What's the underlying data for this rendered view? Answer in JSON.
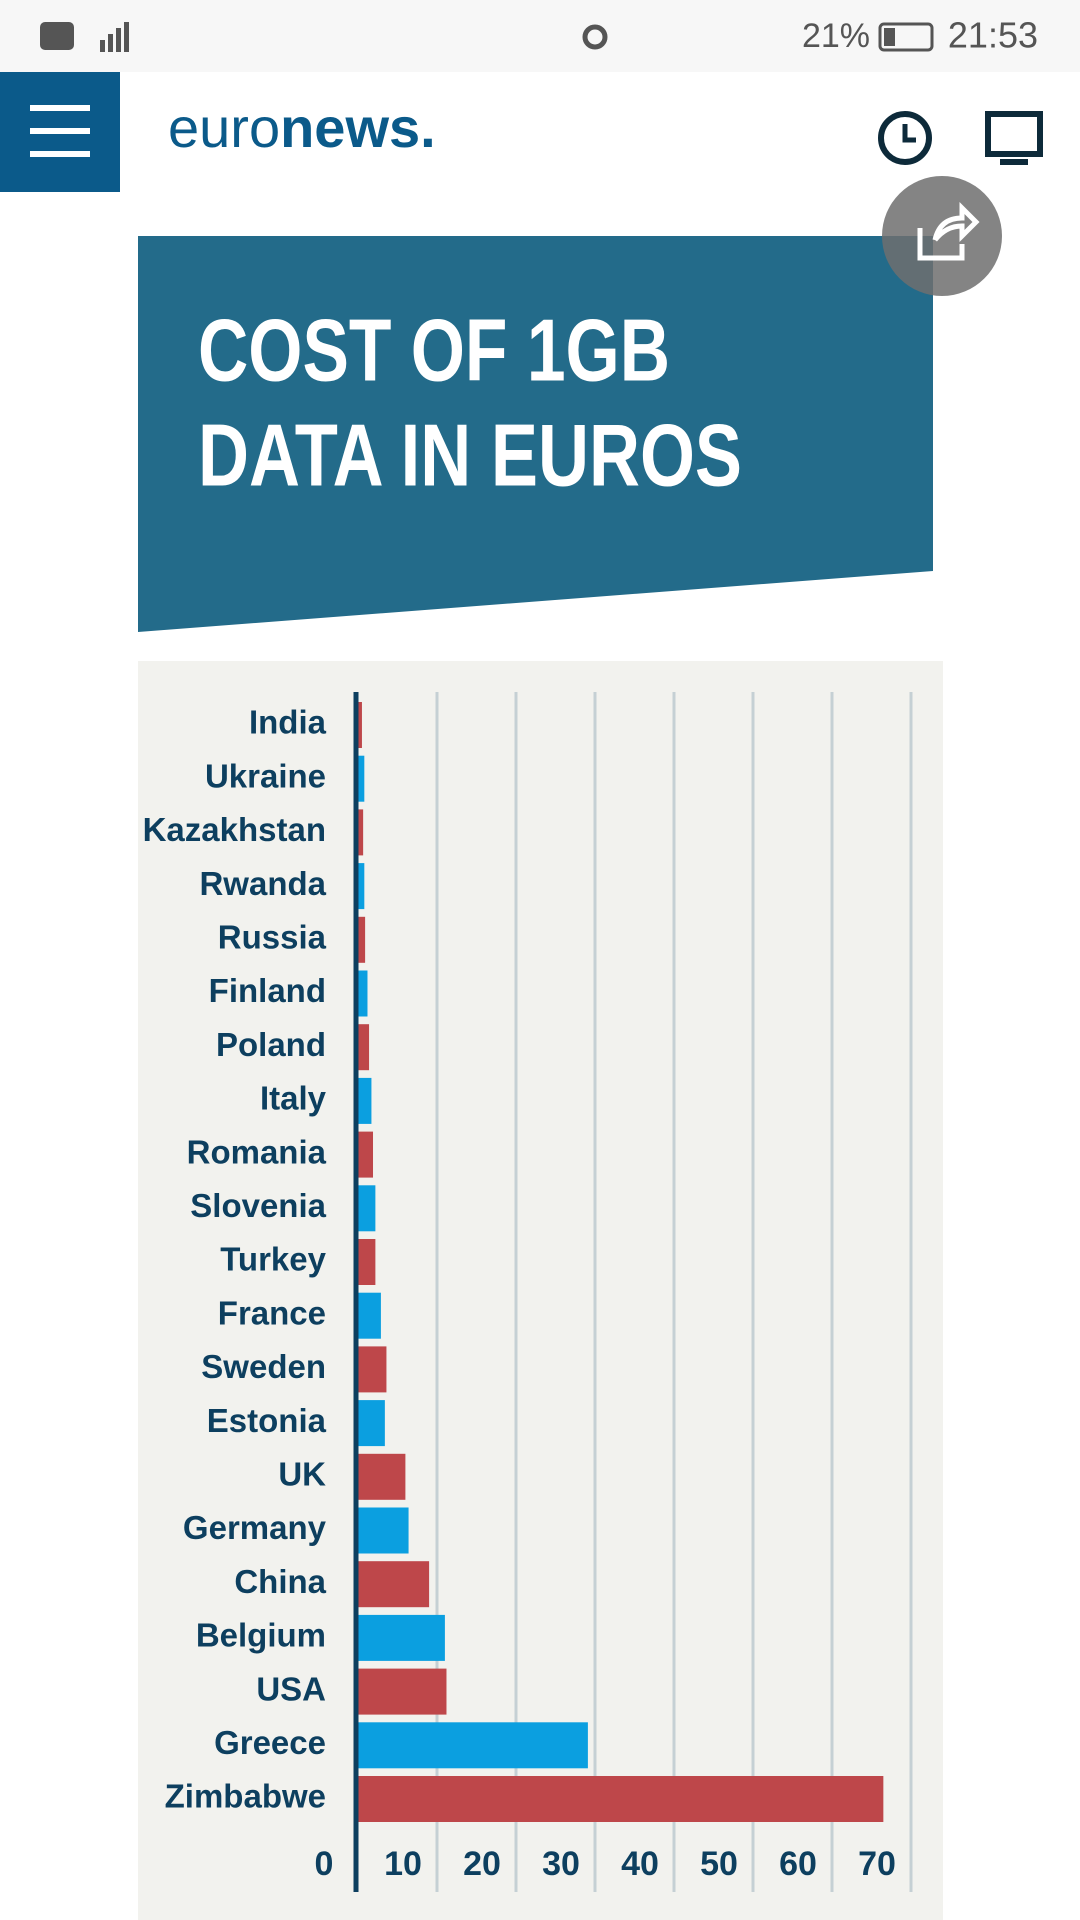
{
  "status_bar": {
    "battery": "21%",
    "time": "21:53"
  },
  "header": {
    "logo_light": "euro",
    "logo_bold": "news."
  },
  "chart_data": {
    "type": "bar",
    "orientation": "horizontal",
    "title_lines": [
      "COST OF 1GB",
      "DATA IN EUROS"
    ],
    "categories": [
      "India",
      "Ukraine",
      "Kazakhstan",
      "Rwanda",
      "Russia",
      "Finland",
      "Poland",
      "Italy",
      "Romania",
      "Slovenia",
      "Turkey",
      "France",
      "Sweden",
      "Estonia",
      "UK",
      "Germany",
      "China",
      "Belgium",
      "USA",
      "Greece",
      "Zimbabwe"
    ],
    "values": [
      0.5,
      0.8,
      0.65,
      0.8,
      0.9,
      1.2,
      1.4,
      1.7,
      1.9,
      2.2,
      2.2,
      2.9,
      3.6,
      3.4,
      6,
      6.4,
      9,
      11,
      11.2,
      29.1,
      66.5
    ],
    "colors": [
      "#be474a",
      "#0b9fe0"
    ],
    "xlim": [
      0,
      70
    ],
    "xticks": [
      0,
      10,
      20,
      30,
      40,
      50,
      60,
      70
    ],
    "grid": true
  }
}
